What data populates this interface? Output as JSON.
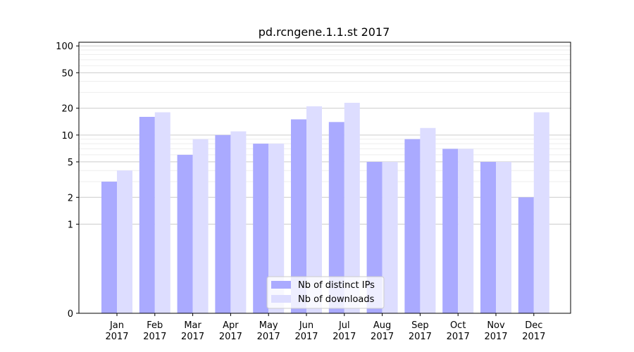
{
  "chart_data": {
    "type": "bar",
    "title": "pd.rcngene.1.1.st 2017",
    "xlabel": "",
    "ylabel": "",
    "y_scale": "symlog",
    "ylim": [
      0,
      110
    ],
    "y_ticks": [
      0,
      1,
      2,
      5,
      10,
      20,
      50,
      100
    ],
    "y_tick_labels": [
      "0",
      "1",
      "2",
      "5",
      "10",
      "20",
      "50",
      "100"
    ],
    "grid": "horizontal",
    "legend_position": "bottom-center",
    "categories": [
      {
        "month": "Jan",
        "year": "2017"
      },
      {
        "month": "Feb",
        "year": "2017"
      },
      {
        "month": "Mar",
        "year": "2017"
      },
      {
        "month": "Apr",
        "year": "2017"
      },
      {
        "month": "May",
        "year": "2017"
      },
      {
        "month": "Jun",
        "year": "2017"
      },
      {
        "month": "Jul",
        "year": "2017"
      },
      {
        "month": "Aug",
        "year": "2017"
      },
      {
        "month": "Sep",
        "year": "2017"
      },
      {
        "month": "Oct",
        "year": "2017"
      },
      {
        "month": "Nov",
        "year": "2017"
      },
      {
        "month": "Dec",
        "year": "2017"
      }
    ],
    "series": [
      {
        "name": "Nb of distinct IPs",
        "color": "#aaaaff",
        "values": [
          3,
          16,
          6,
          10,
          8,
          15,
          14,
          5,
          9,
          7,
          5,
          2
        ]
      },
      {
        "name": "Nb of downloads",
        "color": "#ddddff",
        "values": [
          4,
          18,
          9,
          11,
          8,
          21,
          23,
          5,
          12,
          7,
          5,
          18
        ]
      }
    ]
  }
}
